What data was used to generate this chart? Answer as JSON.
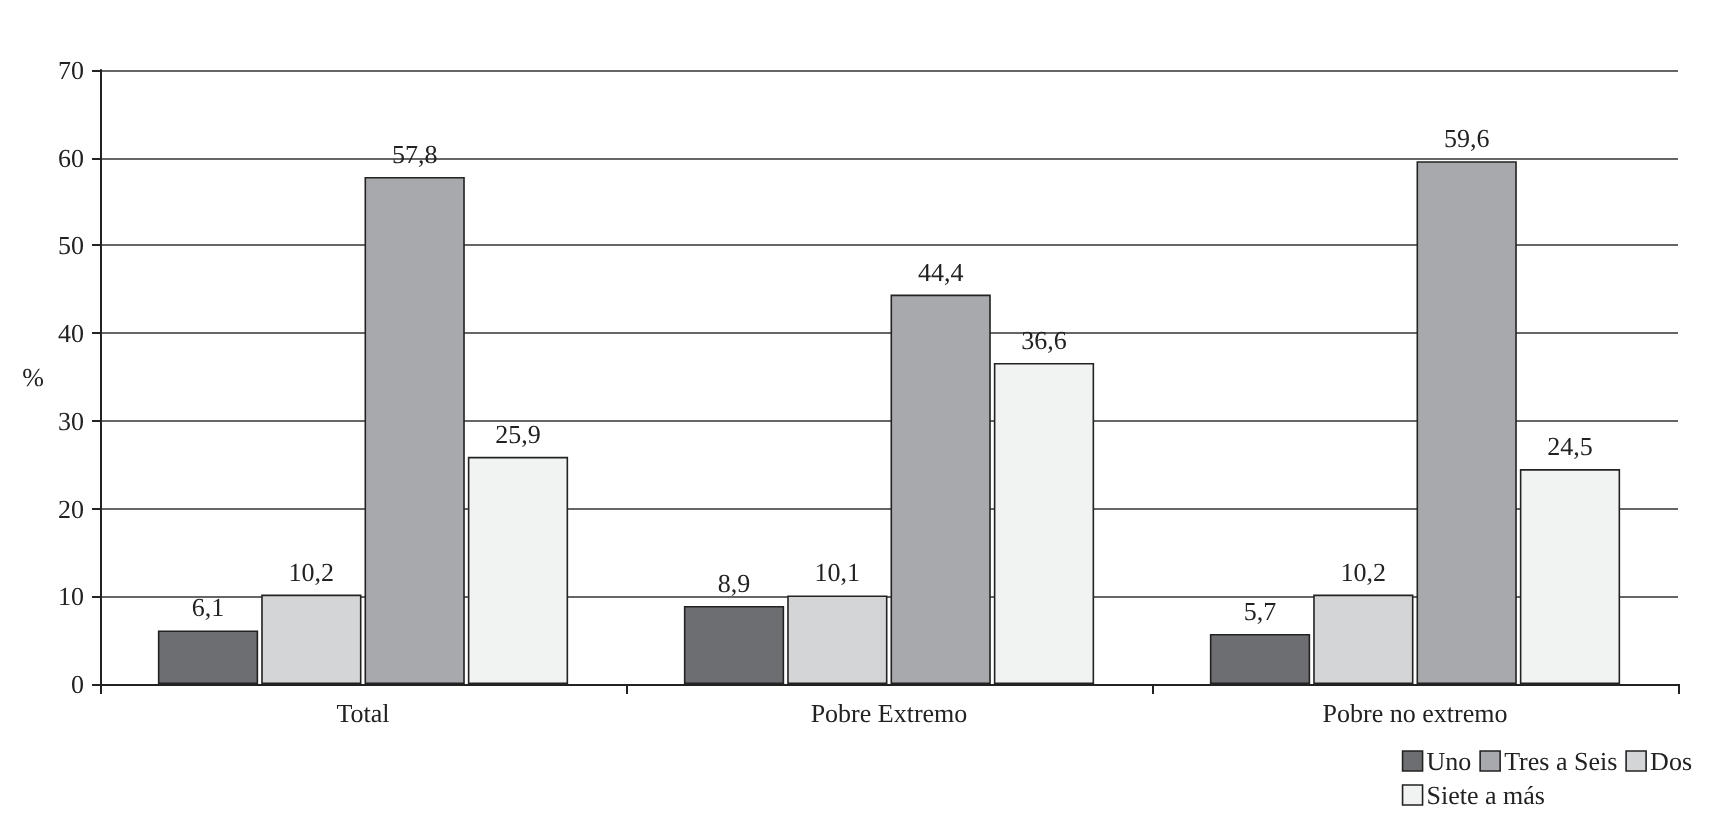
{
  "chart_data": {
    "type": "bar",
    "ylabel": "%",
    "categories": [
      "Total",
      "Pobre Extremo",
      "Pobre no extremo"
    ],
    "series": [
      {
        "name": "Uno",
        "color": "#6d6e71",
        "values": [
          6.1,
          8.9,
          5.7
        ],
        "value_labels": [
          "6,1",
          "8,9",
          "5,7"
        ]
      },
      {
        "name": "Dos",
        "color": "#d4d5d7",
        "values": [
          10.2,
          10.1,
          10.2
        ],
        "value_labels": [
          "10,2",
          "10,1",
          "10,2"
        ]
      },
      {
        "name": "Tres a Seis",
        "color": "#a7a9ac",
        "values": [
          57.8,
          44.4,
          59.6
        ],
        "value_labels": [
          "57,8",
          "44,4",
          "59,6"
        ]
      },
      {
        "name": "Siete a más",
        "color": "#f1f2f2",
        "values": [
          25.9,
          36.6,
          24.5
        ],
        "value_labels": [
          "25,9",
          "36,6",
          "24,5"
        ]
      }
    ],
    "ylim": [
      0,
      70
    ],
    "yticks": [
      0,
      10,
      20,
      30,
      40,
      50,
      60,
      70
    ],
    "grid": "y",
    "legend": "bottom right"
  }
}
